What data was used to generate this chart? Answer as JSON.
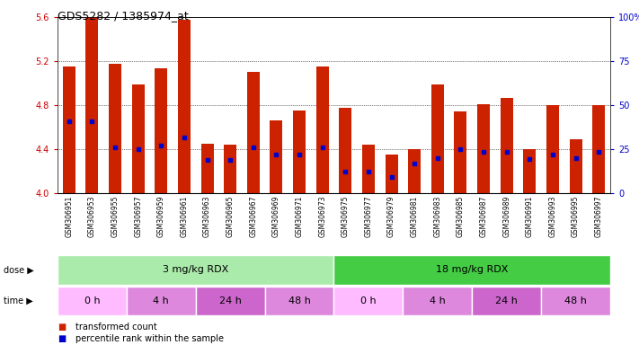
{
  "title": "GDS5282 / 1385974_at",
  "samples": [
    "GSM306951",
    "GSM306953",
    "GSM306955",
    "GSM306957",
    "GSM306959",
    "GSM306961",
    "GSM306963",
    "GSM306965",
    "GSM306967",
    "GSM306969",
    "GSM306971",
    "GSM306973",
    "GSM306975",
    "GSM306977",
    "GSM306979",
    "GSM306981",
    "GSM306983",
    "GSM306985",
    "GSM306987",
    "GSM306989",
    "GSM306991",
    "GSM306993",
    "GSM306995",
    "GSM306997"
  ],
  "bar_values": [
    5.15,
    5.6,
    5.18,
    4.99,
    5.14,
    5.58,
    4.45,
    4.44,
    5.1,
    4.66,
    4.75,
    5.15,
    4.78,
    4.44,
    4.35,
    4.4,
    4.99,
    4.74,
    4.81,
    4.87,
    4.4,
    4.8,
    4.49,
    4.8
  ],
  "dot_values": [
    4.65,
    4.65,
    4.42,
    4.4,
    4.43,
    4.51,
    4.3,
    4.3,
    4.42,
    4.35,
    4.35,
    4.42,
    4.2,
    4.2,
    4.15,
    4.27,
    4.32,
    4.4,
    4.38,
    4.38,
    4.31,
    4.35,
    4.32,
    4.38
  ],
  "bar_bottom": 4.0,
  "ylim_left": [
    4.0,
    5.6
  ],
  "yticks_left": [
    4.0,
    4.4,
    4.8,
    5.2,
    5.6
  ],
  "yticks_right": [
    0,
    25,
    50,
    75,
    100
  ],
  "ylabel_left_color": "#cc0000",
  "ylabel_right_color": "#0000cc",
  "bar_color": "#cc2200",
  "dot_color": "#0000cc",
  "dose_groups": [
    {
      "label": "3 mg/kg RDX",
      "start": 0,
      "end": 12,
      "color": "#aaeaaa"
    },
    {
      "label": "18 mg/kg RDX",
      "start": 12,
      "end": 24,
      "color": "#44cc44"
    }
  ],
  "time_groups": [
    {
      "label": "0 h",
      "start": 0,
      "end": 3,
      "color": "#ffbbff"
    },
    {
      "label": "4 h",
      "start": 3,
      "end": 6,
      "color": "#dd88dd"
    },
    {
      "label": "24 h",
      "start": 6,
      "end": 9,
      "color": "#cc66cc"
    },
    {
      "label": "48 h",
      "start": 9,
      "end": 12,
      "color": "#dd88dd"
    },
    {
      "label": "0 h",
      "start": 12,
      "end": 15,
      "color": "#ffbbff"
    },
    {
      "label": "4 h",
      "start": 15,
      "end": 18,
      "color": "#dd88dd"
    },
    {
      "label": "24 h",
      "start": 18,
      "end": 21,
      "color": "#cc66cc"
    },
    {
      "label": "48 h",
      "start": 21,
      "end": 24,
      "color": "#dd88dd"
    }
  ],
  "legend_items": [
    {
      "label": "transformed count",
      "color": "#cc2200"
    },
    {
      "label": "percentile rank within the sample",
      "color": "#0000cc"
    }
  ],
  "dose_label": "dose",
  "time_label": "time",
  "xtick_bg_color": "#dddddd",
  "grid_dotted_color": "#555555"
}
